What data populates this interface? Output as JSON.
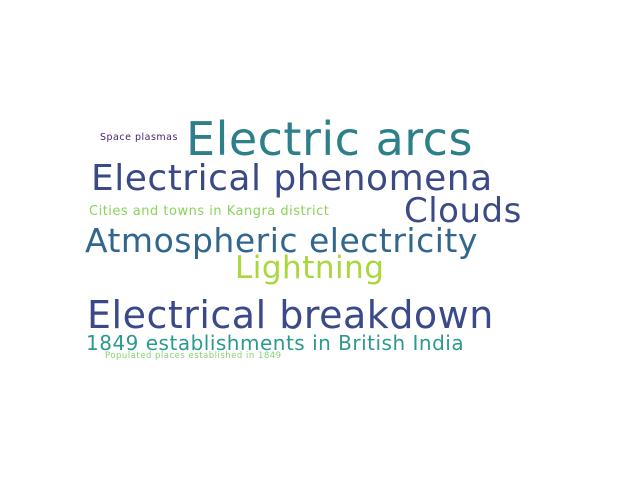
{
  "words": [
    {
      "text": "Electric arcs",
      "color": "#2d7f8a"
    },
    {
      "text": "Electrical phenomena",
      "color": "#3a4a86"
    },
    {
      "text": "Electrical breakdown",
      "color": "#39498a"
    },
    {
      "text": "Atmospheric electricity",
      "color": "#31678d"
    },
    {
      "text": "Clouds",
      "color": "#3c4b87"
    },
    {
      "text": "Lightning",
      "color": "#a8d83c"
    },
    {
      "text": "1849 establishments in British India",
      "color": "#2a9a8e"
    },
    {
      "text": "Cities and towns in Kangra district",
      "color": "#8ad35a"
    },
    {
      "text": "Space plasmas",
      "color": "#4a1d6e"
    },
    {
      "text": "Populated places established in 1849",
      "color": "#82d46e"
    }
  ]
}
